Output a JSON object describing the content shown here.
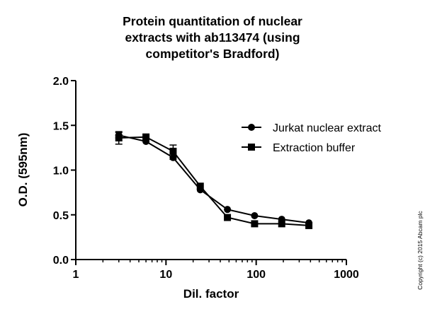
{
  "chart_data": {
    "type": "line",
    "title_lines": [
      "Protein quantitation of nuclear",
      "extracts with ab113474 (using",
      "competitor's Bradford)"
    ],
    "xlabel": "Dil. factor",
    "ylabel": "O.D. (595nm)",
    "xscale": "log",
    "xlim": [
      1,
      1000
    ],
    "ylim": [
      0.0,
      2.0
    ],
    "x_ticks": [
      1,
      10,
      100,
      1000
    ],
    "x_tick_labels": [
      "1",
      "10",
      "100",
      "1000"
    ],
    "y_ticks": [
      0.0,
      0.5,
      1.0,
      1.5,
      2.0
    ],
    "y_tick_labels": [
      "0.0",
      "0.5",
      "1.0",
      "1.5",
      "2.0"
    ],
    "grid": false,
    "legend_position": "right",
    "x": [
      3,
      6,
      12,
      24,
      48,
      96,
      192,
      384
    ],
    "series": [
      {
        "name": "Jurkat nuclear extract",
        "marker": "circle",
        "values": [
          1.39,
          1.32,
          1.14,
          0.78,
          0.56,
          0.49,
          0.45,
          0.41
        ],
        "errors": [
          0.03,
          0.0,
          0.02,
          0.0,
          0.0,
          0.0,
          0.0,
          0.0
        ]
      },
      {
        "name": "Extraction buffer",
        "marker": "square",
        "values": [
          1.36,
          1.37,
          1.21,
          0.82,
          0.47,
          0.4,
          0.4,
          0.38
        ],
        "errors": [
          0.07,
          0.0,
          0.07,
          0.0,
          0.0,
          0.0,
          0.0,
          0.0
        ]
      }
    ],
    "color": "#000000"
  },
  "copyright": "Copyright (c) 2015 Abcam plc"
}
